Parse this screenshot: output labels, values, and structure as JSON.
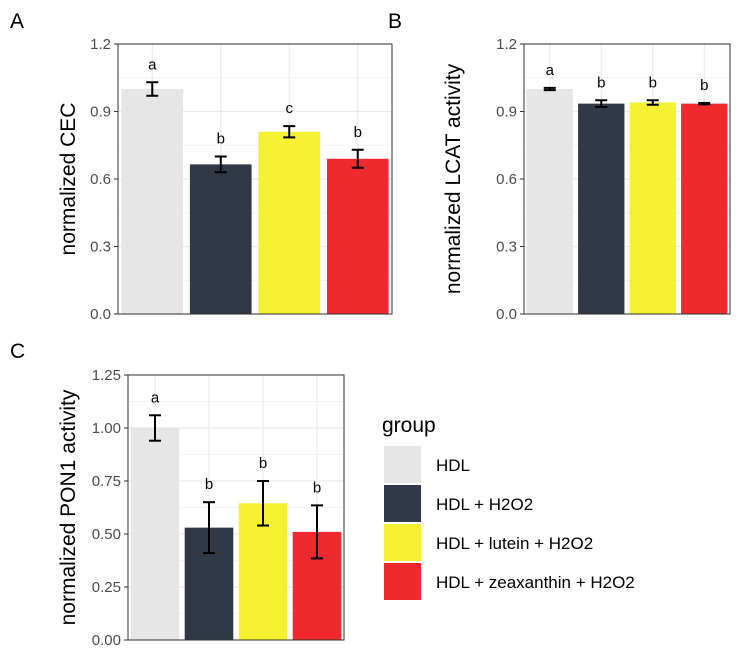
{
  "colors": {
    "HDL": "#e6e6e6",
    "HDL + H2O2": "#313846",
    "HDL + lutein + H2O2": "#f5f032",
    "HDL + zeaxanthin + H2O2": "#ee2a2e",
    "grid_major": "#ebebeb",
    "grid_minor": "#f4f4f4",
    "axis_text": "#4d4d4d"
  },
  "legend": {
    "title": "group",
    "items": [
      {
        "label": "HDL",
        "color": "#e6e6e6"
      },
      {
        "label": "HDL + H2O2",
        "color": "#313846"
      },
      {
        "label": "HDL + lutein + H2O2",
        "color": "#f5f032"
      },
      {
        "label": "HDL + zeaxanthin + H2O2",
        "color": "#ee2a2e"
      }
    ]
  },
  "chart_data": [
    {
      "panel": "A",
      "type": "bar",
      "categories": [
        "HDL",
        "HDL + H2O2",
        "HDL + lutein + H2O2",
        "HDL + zeaxanthin + H2O2"
      ],
      "values": [
        1.0,
        0.665,
        0.81,
        0.69
      ],
      "errors": [
        0.03,
        0.035,
        0.025,
        0.04
      ],
      "significance": [
        "a",
        "b",
        "c",
        "b"
      ],
      "xlabel": "",
      "ylabel": "normalized CEC",
      "ylim": [
        0,
        1.2
      ],
      "yticks": [
        "0.0",
        "0.3",
        "0.6",
        "0.9",
        "1.2"
      ],
      "grid": true
    },
    {
      "panel": "B",
      "type": "bar",
      "categories": [
        "HDL",
        "HDL + H2O2",
        "HDL + lutein + H2O2",
        "HDL + zeaxanthin + H2O2"
      ],
      "values": [
        1.0,
        0.935,
        0.94,
        0.935
      ],
      "errors": [
        0.005,
        0.015,
        0.01,
        0.003
      ],
      "significance": [
        "a",
        "b",
        "b",
        "b"
      ],
      "xlabel": "",
      "ylabel": "normalized LCAT activity",
      "ylim": [
        0,
        1.2
      ],
      "yticks": [
        "0.0",
        "0.3",
        "0.6",
        "0.9",
        "1.2"
      ],
      "grid": true
    },
    {
      "panel": "C",
      "type": "bar",
      "categories": [
        "HDL",
        "HDL + H2O2",
        "HDL + lutein + H2O2",
        "HDL + zeaxanthin + H2O2"
      ],
      "values": [
        1.0,
        0.53,
        0.645,
        0.51
      ],
      "errors": [
        0.06,
        0.12,
        0.105,
        0.125
      ],
      "significance": [
        "a",
        "b",
        "b",
        "b"
      ],
      "xlabel": "",
      "ylabel": "normalized PON1 activity",
      "ylim": [
        0,
        1.25
      ],
      "yticks": [
        "0.00",
        "0.25",
        "0.50",
        "0.75",
        "1.00",
        "1.25"
      ],
      "grid": true
    }
  ]
}
